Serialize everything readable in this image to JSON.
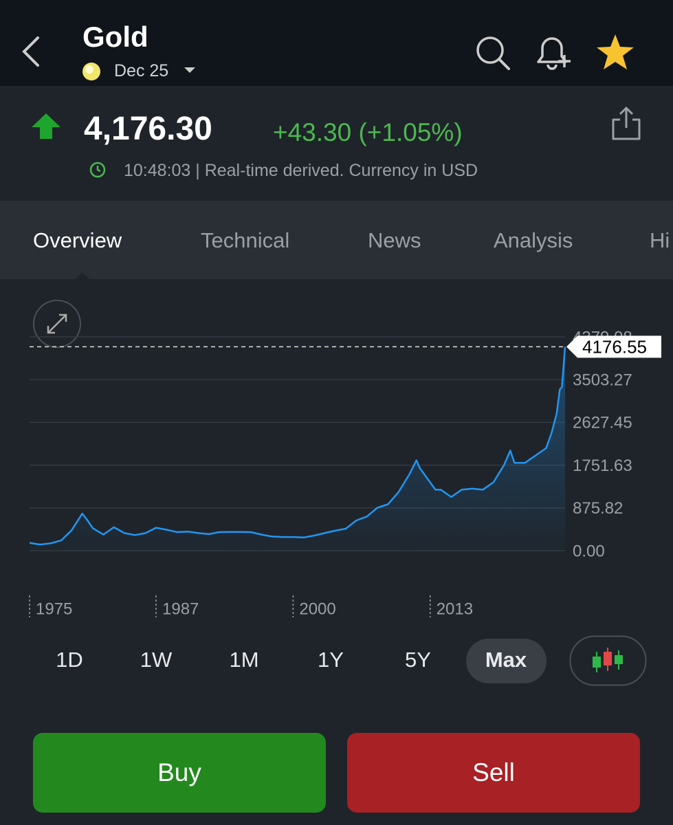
{
  "header": {
    "title": "Gold",
    "contract": "Dec 25"
  },
  "quote": {
    "price": "4,176.30",
    "change": "+43.30 (+1.05%)",
    "note": "10:48:03 | Real-time derived. Currency in USD"
  },
  "tabs": [
    "Overview",
    "Technical",
    "News",
    "Analysis",
    "Hi"
  ],
  "chart_data": {
    "type": "line",
    "color": "#2196f3",
    "x": [
      1975,
      1976,
      1977,
      1978,
      1979,
      1980,
      1980.5,
      1981,
      1982,
      1983,
      1984,
      1985,
      1986,
      1987,
      1988,
      1989,
      1990,
      1991,
      1992,
      1993,
      1994,
      1995,
      1996,
      1997,
      1998,
      1999,
      2000,
      2001,
      2002,
      2003,
      2004,
      2005,
      2006,
      2007,
      2008,
      2009,
      2010,
      2011,
      2011.7,
      2012,
      2013,
      2013.5,
      2014,
      2015,
      2016,
      2017,
      2018,
      2019,
      2020,
      2020.6,
      2021,
      2022,
      2023,
      2024,
      2024.5,
      2025,
      2025.3,
      2025.5,
      2025.8
    ],
    "values": [
      160,
      125,
      150,
      210,
      420,
      760,
      620,
      460,
      330,
      480,
      360,
      320,
      360,
      470,
      430,
      380,
      390,
      360,
      340,
      380,
      385,
      385,
      380,
      330,
      290,
      280,
      280,
      270,
      310,
      360,
      410,
      450,
      620,
      700,
      880,
      950,
      1200,
      1550,
      1850,
      1700,
      1400,
      1250,
      1250,
      1100,
      1250,
      1270,
      1250,
      1400,
      1750,
      2050,
      1800,
      1800,
      1950,
      2100,
      2400,
      2800,
      3300,
      3350,
      4176.55
    ],
    "last_label": 4176.55,
    "xlim": [
      1975,
      2025.8
    ],
    "xticks": [
      1975,
      1987,
      2000,
      2013
    ],
    "ylim": [
      0,
      4379.08
    ],
    "yticks": [
      {
        "value": 0,
        "label": "0.00"
      },
      {
        "value": 875.82,
        "label": "875.82"
      },
      {
        "value": 1751.63,
        "label": "1751.63"
      },
      {
        "value": 2627.45,
        "label": "2627.45"
      },
      {
        "value": 3503.27,
        "label": "3503.27"
      },
      {
        "value": 4379.08,
        "label": "4379.08"
      }
    ],
    "grid": true
  },
  "ranges": [
    "1D",
    "1W",
    "1M",
    "1Y",
    "5Y",
    "Max"
  ],
  "actions": {
    "buy": "Buy",
    "sell": "Sell"
  }
}
